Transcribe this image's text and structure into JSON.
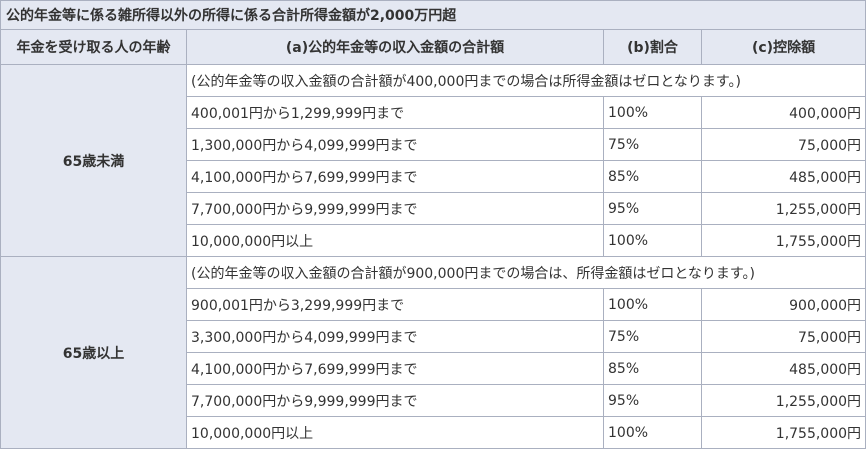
{
  "title": "公的年金等に係る雑所得以外の所得に係る合計所得金額が2,000万円超",
  "headers": {
    "age": "年金を受け取る人の年齢",
    "income": "(a)公的年金等の収入金額の合計額",
    "rate": "(b)割合",
    "deduction": "(c)控除額"
  },
  "groups": [
    {
      "age": "65歳未満",
      "note": "(公的年金等の収入金額の合計額が400,000円までの場合は所得金額はゼロとなります。)",
      "rows": [
        {
          "range": "400,001円から1,299,999円まで",
          "rate": "100%",
          "deduction": "400,000円"
        },
        {
          "range": "1,300,000円から4,099,999円まで",
          "rate": "75%",
          "deduction": "75,000円"
        },
        {
          "range": "4,100,000円から7,699,999円まで",
          "rate": "85%",
          "deduction": "485,000円"
        },
        {
          "range": "7,700,000円から9,999,999円まで",
          "rate": "95%",
          "deduction": "1,255,000円"
        },
        {
          "range": "10,000,000円以上",
          "rate": "100%",
          "deduction": "1,755,000円"
        }
      ]
    },
    {
      "age": "65歳以上",
      "note": "(公的年金等の収入金額の合計額が900,000円までの場合は、所得金額はゼロとなります。)",
      "rows": [
        {
          "range": "900,001円から3,299,999円まで",
          "rate": "100%",
          "deduction": "900,000円"
        },
        {
          "range": "3,300,000円から4,099,999円まで",
          "rate": "75%",
          "deduction": "75,000円"
        },
        {
          "range": "4,100,000円から7,699,999円まで",
          "rate": "85%",
          "deduction": "485,000円"
        },
        {
          "range": "7,700,000円から9,999,999円まで",
          "rate": "95%",
          "deduction": "1,255,000円"
        },
        {
          "range": "10,000,000円以上",
          "rate": "100%",
          "deduction": "1,755,000円"
        }
      ]
    }
  ]
}
